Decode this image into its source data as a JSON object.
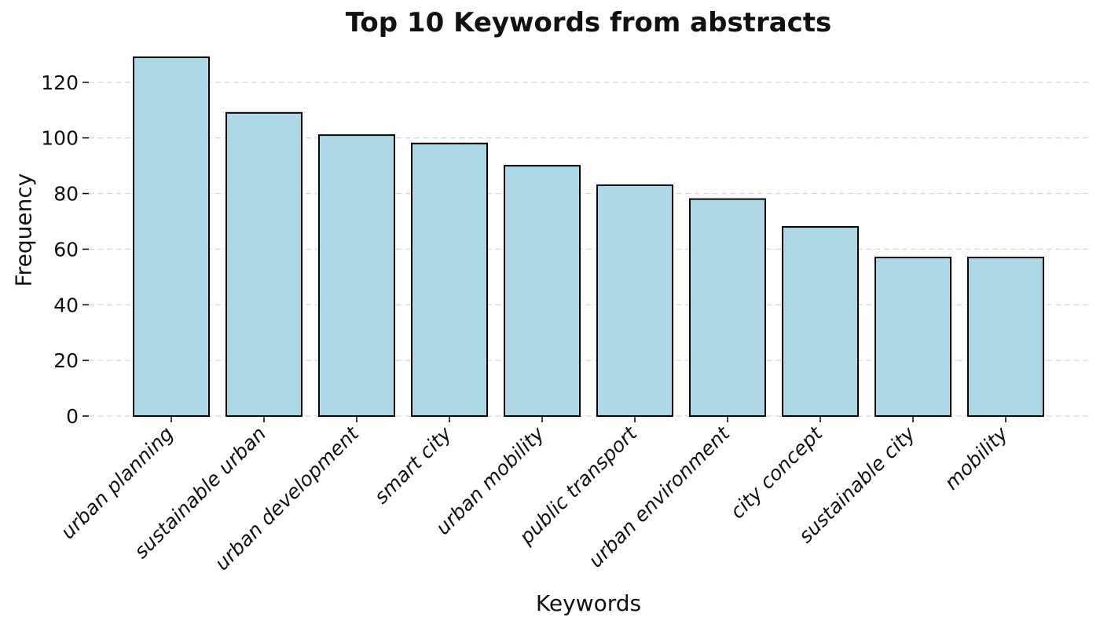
{
  "chart_data": {
    "type": "bar",
    "title": "Top 10 Keywords from abstracts",
    "xlabel": "Keywords",
    "ylabel": "Frequency",
    "categories": [
      "urban planning",
      "sustainable urban",
      "urban development",
      "smart city",
      "urban mobility",
      "public transport",
      "urban environment",
      "city concept",
      "sustainable city",
      "mobility"
    ],
    "values": [
      129,
      109,
      101,
      98,
      90,
      83,
      78,
      68,
      57,
      57
    ],
    "yticks": [
      0,
      20,
      40,
      60,
      80,
      100,
      120
    ],
    "ylim": [
      0,
      135
    ],
    "grid": true,
    "legend_position": "none",
    "bar_color": "#ADD8E6",
    "bar_edge_color": "#000000",
    "grid_color": "#d9d9d9",
    "tick_color": "#000000",
    "background_color": "#ffffff"
  }
}
